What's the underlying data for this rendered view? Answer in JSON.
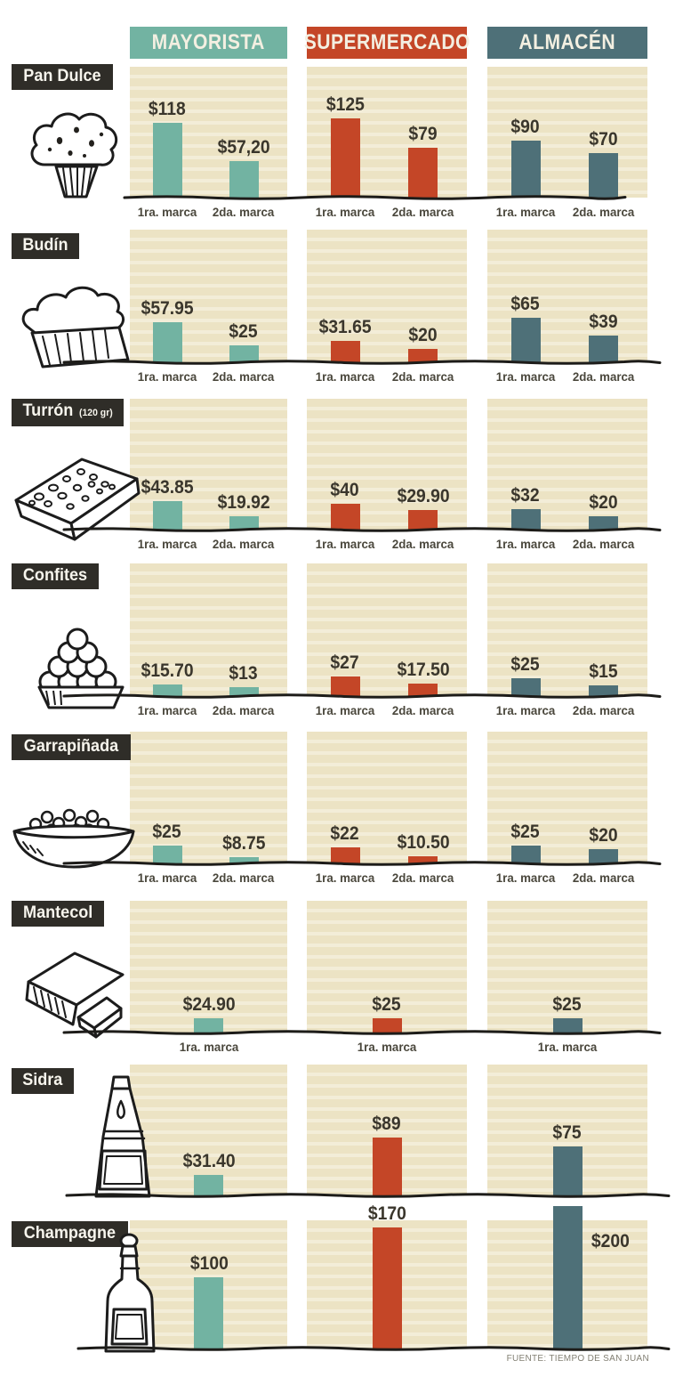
{
  "columns": [
    {
      "label": "MAYORISTA",
      "color": "#72b3a2"
    },
    {
      "label": "SUPERMERCADO",
      "color": "#c44627"
    },
    {
      "label": "ALMACÉN",
      "color": "#4e7078"
    }
  ],
  "footer": {
    "source": "FUENTE: TIEMPO DE SAN JUAN"
  },
  "colors": {
    "panel_bg": "#ece3c4",
    "panel_stripe": "#f3edd8",
    "badge_bg": "#2f2d28",
    "badge_text": "#f7f5ed",
    "price_text": "#3a362c",
    "category_text": "#4a473c",
    "axis_line": "#1d1c19",
    "header_text": "#f3efe1",
    "source_text": "#827f73"
  },
  "chart_data": [
    {
      "type": "bar",
      "product": "Pan Dulce",
      "icon": "pan-dulce-illustration",
      "categories": [
        "1ra. marca",
        "2da. marca"
      ],
      "series": [
        {
          "name": "MAYORISTA",
          "values": [
            118,
            57.2
          ],
          "labels": [
            "$118",
            "$57,20"
          ]
        },
        {
          "name": "SUPERMERCADO",
          "values": [
            125,
            79
          ],
          "labels": [
            "$125",
            "$79"
          ]
        },
        {
          "name": "ALMACÉN",
          "values": [
            90,
            70
          ],
          "labels": [
            "$90",
            "$70"
          ]
        }
      ]
    },
    {
      "type": "bar",
      "product": "Budín",
      "icon": "budin-illustration",
      "categories": [
        "1ra. marca",
        "2da. marca"
      ],
      "series": [
        {
          "name": "MAYORISTA",
          "values": [
            57.95,
            25
          ],
          "labels": [
            "$57.95",
            "$25"
          ]
        },
        {
          "name": "SUPERMERCADO",
          "values": [
            31.65,
            20
          ],
          "labels": [
            "$31.65",
            "$20"
          ]
        },
        {
          "name": "ALMACÉN",
          "values": [
            65,
            39
          ],
          "labels": [
            "$65",
            "$39"
          ]
        }
      ]
    },
    {
      "type": "bar",
      "product": "Turrón",
      "note": "(120 gr)",
      "icon": "turron-illustration",
      "categories": [
        "1ra. marca",
        "2da. marca"
      ],
      "series": [
        {
          "name": "MAYORISTA",
          "values": [
            43.85,
            19.92
          ],
          "labels": [
            "$43.85",
            "$19.92"
          ]
        },
        {
          "name": "SUPERMERCADO",
          "values": [
            40,
            29.9
          ],
          "labels": [
            "$40",
            "$29.90"
          ]
        },
        {
          "name": "ALMACÉN",
          "values": [
            32,
            20
          ],
          "labels": [
            "$32",
            "$20"
          ]
        }
      ]
    },
    {
      "type": "bar",
      "product": "Confites",
      "icon": "confites-illustration",
      "categories": [
        "1ra. marca",
        "2da. marca"
      ],
      "series": [
        {
          "name": "MAYORISTA",
          "values": [
            15.7,
            13
          ],
          "labels": [
            "$15.70",
            "$13"
          ]
        },
        {
          "name": "SUPERMERCADO",
          "values": [
            27,
            17.5
          ],
          "labels": [
            "$27",
            "$17.50"
          ]
        },
        {
          "name": "ALMACÉN",
          "values": [
            25,
            15
          ],
          "labels": [
            "$25",
            "$15"
          ]
        }
      ]
    },
    {
      "type": "bar",
      "product": "Garrapiñada",
      "icon": "garrapinada-illustration",
      "categories": [
        "1ra. marca",
        "2da. marca"
      ],
      "series": [
        {
          "name": "MAYORISTA",
          "values": [
            25,
            8.75
          ],
          "labels": [
            "$25",
            "$8.75"
          ]
        },
        {
          "name": "SUPERMERCADO",
          "values": [
            22,
            10.5
          ],
          "labels": [
            "$22",
            "$10.50"
          ]
        },
        {
          "name": "ALMACÉN",
          "values": [
            25,
            20
          ],
          "labels": [
            "$25",
            "$20"
          ]
        }
      ]
    },
    {
      "type": "bar",
      "product": "Mantecol",
      "icon": "mantecol-illustration",
      "categories": [
        "1ra. marca"
      ],
      "series": [
        {
          "name": "MAYORISTA",
          "values": [
            24.9
          ],
          "labels": [
            "$24.90"
          ]
        },
        {
          "name": "SUPERMERCADO",
          "values": [
            25
          ],
          "labels": [
            "$25"
          ]
        },
        {
          "name": "ALMACÉN",
          "values": [
            25
          ],
          "labels": [
            "$25"
          ]
        }
      ]
    },
    {
      "type": "bar",
      "product": "Sidra",
      "icon": "sidra-illustration",
      "categories": [],
      "series": [
        {
          "name": "MAYORISTA",
          "values": [
            31.4
          ],
          "labels": [
            "$31.40"
          ]
        },
        {
          "name": "SUPERMERCADO",
          "values": [
            89
          ],
          "labels": [
            "$89"
          ]
        },
        {
          "name": "ALMACÉN",
          "values": [
            75
          ],
          "labels": [
            "$75"
          ]
        }
      ]
    },
    {
      "type": "bar",
      "product": "Champagne",
      "icon": "champagne-illustration",
      "categories": [],
      "series": [
        {
          "name": "MAYORISTA",
          "values": [
            100
          ],
          "labels": [
            "$100"
          ]
        },
        {
          "name": "SUPERMERCADO",
          "values": [
            170
          ],
          "labels": [
            "$170"
          ]
        },
        {
          "name": "ALMACÉN",
          "values": [
            200
          ],
          "labels": [
            "$200"
          ],
          "label_side": "right"
        }
      ]
    }
  ]
}
